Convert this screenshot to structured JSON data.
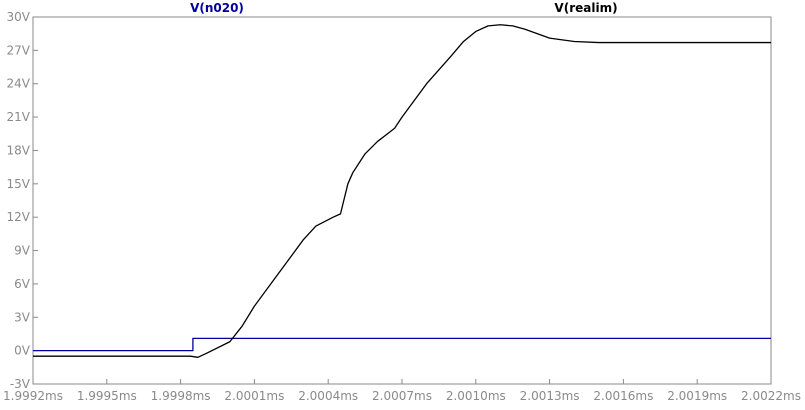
{
  "window": {
    "background_color": "#ffffff",
    "axis_color": "#8a8a8a",
    "grid_color": "#c8c8c8"
  },
  "chart_data": {
    "type": "line",
    "title": "",
    "xlabel": "",
    "ylabel": "",
    "xlim": [
      1.9992,
      2.0022
    ],
    "ylim": [
      -3,
      30
    ],
    "grid": false,
    "x_unit": "ms",
    "y_unit": "V",
    "x_ticks": [
      1.9992,
      1.9995,
      1.9998,
      2.0001,
      2.0004,
      2.0007,
      2.001,
      2.0013,
      2.0016,
      2.0019,
      2.0022
    ],
    "x_tick_labels": [
      "1.9992ms",
      "1.9995ms",
      "1.9998ms",
      "2.0001ms",
      "2.0004ms",
      "2.0007ms",
      "2.0010ms",
      "2.0013ms",
      "2.0016ms",
      "2.0019ms",
      "2.0022ms"
    ],
    "y_ticks": [
      -3,
      0,
      3,
      6,
      9,
      12,
      15,
      18,
      21,
      24,
      27,
      30
    ],
    "y_tick_labels": [
      "-3V",
      "0V",
      "3V",
      "6V",
      "9V",
      "12V",
      "15V",
      "18V",
      "21V",
      "24V",
      "27V",
      "30V"
    ],
    "legend": "top",
    "series": [
      {
        "name": "V(n020)",
        "color": "#0000a0",
        "x": [
          1.9992,
          1.99985,
          1.99985,
          2.0022
        ],
        "y": [
          0.0,
          0.0,
          1.1,
          1.1
        ]
      },
      {
        "name": "V(realim)",
        "color": "#000000",
        "x": [
          1.9992,
          1.99984,
          1.99987,
          1.9999,
          2.0,
          2.00005,
          2.0001,
          2.0002,
          2.0003,
          2.00035,
          2.00042,
          2.00045,
          2.00048,
          2.0005,
          2.00055,
          2.0006,
          2.00067,
          2.0007,
          2.0008,
          2.0009,
          2.00095,
          2.001,
          2.00105,
          2.0011,
          2.00115,
          2.0012,
          2.0013,
          2.0014,
          2.0015,
          2.0016,
          2.0018,
          2.002,
          2.0022
        ],
        "y": [
          -0.5,
          -0.5,
          -0.6,
          -0.3,
          0.8,
          2.2,
          4.0,
          7.0,
          10.0,
          11.2,
          12.0,
          12.3,
          15.0,
          16.0,
          17.7,
          18.8,
          20.0,
          21.0,
          24.0,
          26.5,
          27.8,
          28.7,
          29.2,
          29.3,
          29.2,
          28.9,
          28.1,
          27.8,
          27.7,
          27.7,
          27.7,
          27.7,
          27.7
        ]
      }
    ]
  }
}
